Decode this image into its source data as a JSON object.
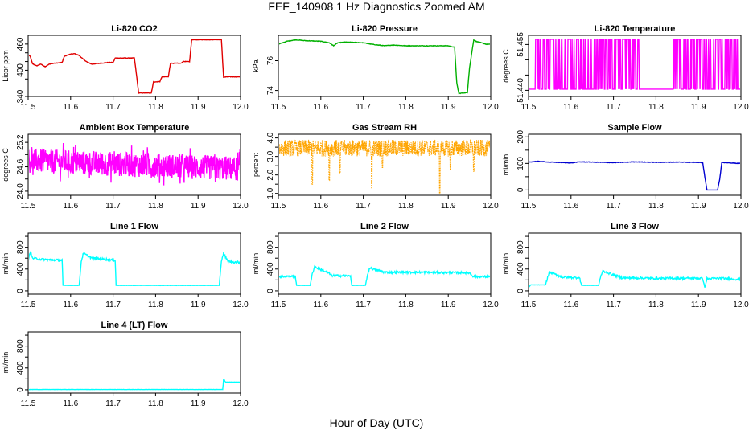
{
  "figure": {
    "title": "FEF_140908  1 Hz Diagnostics Zoomed AM",
    "xlabel": "Hour of Day (UTC)"
  },
  "chart_data": [
    {
      "type": "line",
      "title": "Li-820 CO2",
      "ylabel": "Licor ppm",
      "color": "#e00000",
      "xlim": [
        11.5,
        12.0
      ],
      "ylim": [
        340,
        480
      ],
      "xticks": [
        "11.5",
        "11.6",
        "11.7",
        "11.8",
        "11.9",
        "12.0"
      ],
      "yticks": [
        "340",
        "400",
        "460"
      ],
      "yticks_minor": [
        380,
        420,
        440
      ],
      "series": [
        {
          "x": [
            11.5,
            11.505,
            11.51,
            11.52,
            11.53,
            11.54,
            11.55,
            11.56,
            11.58,
            11.585,
            11.6,
            11.61,
            11.62,
            11.63,
            11.64,
            11.65,
            11.67,
            11.69,
            11.7,
            11.705,
            11.73,
            11.75,
            11.755,
            11.76,
            11.79,
            11.795,
            11.81,
            11.815,
            11.83,
            11.835,
            11.86,
            11.865,
            11.88,
            11.885,
            11.92,
            11.95,
            11.955,
            11.96,
            11.97,
            11.99,
            12.0
          ],
          "y": [
            434,
            432,
            415,
            410,
            414,
            408,
            414,
            416,
            418,
            432,
            437,
            438,
            434,
            425,
            418,
            414,
            416,
            418,
            418,
            428,
            428,
            428,
            390,
            348,
            348,
            373,
            374,
            385,
            385,
            416,
            416,
            420,
            420,
            470,
            470,
            470,
            470,
            384,
            385,
            385,
            385
          ]
        }
      ]
    },
    {
      "type": "line",
      "title": "Li-820 Pressure",
      "ylabel": "kPa",
      "color": "#00b000",
      "xlim": [
        11.5,
        12.0
      ],
      "ylim": [
        73.6,
        77.7
      ],
      "xticks": [
        "11.5",
        "11.6",
        "11.7",
        "11.8",
        "11.9",
        "12.0"
      ],
      "yticks": [
        "74",
        "76"
      ],
      "series": [
        {
          "x": [
            11.5,
            11.52,
            11.54,
            11.56,
            11.6,
            11.62,
            11.63,
            11.64,
            11.66,
            11.7,
            11.72,
            11.75,
            11.77,
            11.8,
            11.85,
            11.9,
            11.915,
            11.92,
            11.925,
            11.94,
            11.945,
            11.95,
            11.96,
            11.965,
            11.99,
            12.0
          ],
          "y": [
            77.1,
            77.3,
            77.4,
            77.35,
            77.3,
            77.2,
            77.0,
            77.2,
            77.25,
            77.2,
            77.1,
            77.0,
            77.05,
            77.0,
            77.0,
            77.0,
            76.9,
            74.5,
            73.8,
            73.85,
            73.85,
            75.5,
            77.4,
            77.3,
            77.1,
            77.1
          ]
        }
      ]
    },
    {
      "type": "line",
      "title": "Li-820 Temperature",
      "ylabel": "degrees C",
      "color": "#ff00ff",
      "xlim": [
        11.5,
        12.0
      ],
      "ylim": [
        51.438,
        51.458
      ],
      "xticks": [
        "11.5",
        "11.6",
        "11.7",
        "11.8",
        "11.9",
        "12.0"
      ],
      "yticks": [
        "51.440",
        "51.455"
      ],
      "yticks_minor": [
        51.445,
        51.45
      ],
      "levels": [
        51.4404,
        51.4567
      ],
      "gap": [
        11.76,
        11.84
      ]
    },
    {
      "type": "line",
      "title": "Ambient Box Temperature",
      "ylabel": "degrees C",
      "color": "#ff00ff",
      "xlim": [
        11.5,
        12.0
      ],
      "ylim": [
        23.9,
        25.4
      ],
      "xticks": [
        "11.5",
        "11.6",
        "11.7",
        "11.8",
        "11.9",
        "12.0"
      ],
      "yticks": [
        "24.0",
        "24.6",
        "25.2"
      ],
      "yticks_minor": [
        24.3,
        24.9
      ],
      "mean_start": 24.75,
      "mean_end": 24.55,
      "noise": 0.3
    },
    {
      "type": "line",
      "title": "Gas Stream RH",
      "ylabel": "percent",
      "color": "#ffa500",
      "xlim": [
        11.5,
        12.0
      ],
      "ylim": [
        0.9,
        4.2
      ],
      "xticks": [
        "11.5",
        "11.6",
        "11.7",
        "11.8",
        "11.9",
        "12.0"
      ],
      "yticks": [
        "1.0",
        "2.0",
        "3.0",
        "4.0"
      ],
      "yticks_minor": [
        1.5,
        2.5,
        3.5
      ],
      "band": [
        3.0,
        3.9
      ],
      "dips": [
        [
          11.58,
          1.5
        ],
        [
          11.62,
          1.7
        ],
        [
          11.645,
          2.1
        ],
        [
          11.72,
          1.3
        ],
        [
          11.745,
          2.4
        ],
        [
          11.88,
          1.0
        ],
        [
          11.905,
          2.3
        ],
        [
          11.96,
          2.2
        ]
      ]
    },
    {
      "type": "line",
      "title": "Sample Flow",
      "ylabel": "ml/min",
      "color": "#0000d0",
      "xlim": [
        11.5,
        12.0
      ],
      "ylim": [
        -20,
        210
      ],
      "xticks": [
        "11.5",
        "11.6",
        "11.7",
        "11.8",
        "11.9",
        "12.0"
      ],
      "yticks": [
        "0",
        "100",
        "200"
      ],
      "yticks_minor": [
        50,
        150
      ],
      "series": [
        {
          "x": [
            11.5,
            11.52,
            11.55,
            11.6,
            11.62,
            11.65,
            11.7,
            11.75,
            11.8,
            11.85,
            11.9,
            11.91,
            11.915,
            11.92,
            11.945,
            11.95,
            11.955,
            11.97,
            12.0
          ],
          "y": [
            105,
            108,
            105,
            102,
            106,
            105,
            103,
            106,
            104,
            105,
            104,
            103,
            50,
            0,
            0,
            40,
            104,
            102,
            100
          ]
        }
      ]
    },
    {
      "type": "line",
      "title": "Line 1 Flow",
      "ylabel": "ml/min",
      "color": "#00ffff",
      "xlim": [
        11.5,
        12.0
      ],
      "ylim": [
        -60,
        1060
      ],
      "xticks": [
        "11.5",
        "11.6",
        "11.7",
        "11.8",
        "11.9",
        "12.0"
      ],
      "yticks": [
        "0",
        "400",
        "800"
      ],
      "yticks_minor": [
        200,
        600,
        1000
      ],
      "series": [
        {
          "x": [
            11.5,
            11.505,
            11.51,
            11.53,
            11.55,
            11.58,
            11.582,
            11.62,
            11.625,
            11.63,
            11.65,
            11.68,
            11.705,
            11.707,
            11.95,
            11.955,
            11.96,
            11.97,
            12.0
          ],
          "y": [
            560,
            720,
            600,
            580,
            570,
            560,
            100,
            100,
            540,
            690,
            600,
            580,
            560,
            100,
            100,
            560,
            690,
            540,
            520
          ]
        }
      ]
    },
    {
      "type": "line",
      "title": "Line 2 Flow",
      "ylabel": "ml/min",
      "color": "#00ffff",
      "xlim": [
        11.5,
        12.0
      ],
      "ylim": [
        -60,
        1060
      ],
      "xticks": [
        "11.5",
        "11.6",
        "11.7",
        "11.8",
        "11.9",
        "12.0"
      ],
      "yticks": [
        "0",
        "400",
        "800"
      ],
      "yticks_minor": [
        200,
        600,
        1000
      ],
      "series": [
        {
          "x": [
            11.5,
            11.54,
            11.543,
            11.575,
            11.58,
            11.585,
            11.62,
            11.625,
            11.67,
            11.673,
            11.705,
            11.71,
            11.715,
            11.75,
            11.8,
            11.85,
            11.95,
            11.955,
            11.96,
            12.0
          ],
          "y": [
            260,
            270,
            100,
            100,
            310,
            440,
            320,
            280,
            270,
            100,
            100,
            300,
            420,
            340,
            340,
            340,
            330,
            290,
            260,
            260
          ]
        }
      ]
    },
    {
      "type": "line",
      "title": "Line 3 Flow",
      "ylabel": "ml/min",
      "color": "#00ffff",
      "xlim": [
        11.5,
        12.0
      ],
      "ylim": [
        -60,
        1060
      ],
      "xticks": [
        "11.5",
        "11.6",
        "11.7",
        "11.8",
        "11.9",
        "12.0"
      ],
      "yticks": [
        "0",
        "400",
        "800"
      ],
      "yticks_minor": [
        200,
        600,
        1000
      ],
      "series": [
        {
          "x": [
            11.5,
            11.505,
            11.54,
            11.545,
            11.55,
            11.58,
            11.62,
            11.625,
            11.665,
            11.67,
            11.675,
            11.72,
            11.8,
            11.85,
            11.91,
            11.915,
            11.92,
            11.95,
            12.0
          ],
          "y": [
            60,
            110,
            110,
            250,
            340,
            250,
            240,
            100,
            100,
            270,
            360,
            240,
            230,
            230,
            230,
            60,
            220,
            230,
            210
          ]
        }
      ]
    },
    {
      "type": "line",
      "title": "Line 4 (LT) Flow",
      "ylabel": "ml/min",
      "color": "#00ffff",
      "xlim": [
        11.5,
        12.0
      ],
      "ylim": [
        -60,
        1060
      ],
      "xticks": [
        "11.5",
        "11.6",
        "11.7",
        "11.8",
        "11.9",
        "12.0"
      ],
      "yticks": [
        "0",
        "400",
        "800"
      ],
      "yticks_minor": [
        200,
        600,
        1000
      ],
      "series": [
        {
          "x": [
            11.5,
            11.6,
            11.7,
            11.8,
            11.9,
            11.958,
            11.96,
            11.965,
            11.97,
            12.0
          ],
          "y": [
            5,
            5,
            5,
            5,
            5,
            5,
            180,
            140,
            140,
            140
          ]
        }
      ]
    }
  ]
}
